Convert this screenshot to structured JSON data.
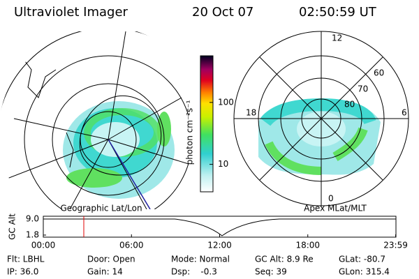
{
  "header": {
    "title": "Ultraviolet Imager",
    "date": "20 Oct 07",
    "time": "02:50:59 UT"
  },
  "left_map": {
    "label": "Geographic Lat/Lon"
  },
  "right_map": {
    "label": "Apex MLat/MLT",
    "mlt_labels": [
      "12",
      "18",
      "6",
      "0"
    ],
    "lat_labels": [
      "60",
      "70",
      "80"
    ]
  },
  "colorbar": {
    "label": "photon cm⁻²s⁻¹",
    "log": true,
    "lim": [
      3.6,
      566
    ],
    "ticks": [
      10,
      100
    ]
  },
  "altitude_plot": {
    "ylabel": "GC Alt",
    "ylim": [
      1.8,
      9.0
    ],
    "yticks": [
      {
        "value": 9.0,
        "label": "9.0"
      },
      {
        "value": 1.8,
        "label": "1.8"
      }
    ],
    "xlim": [
      0,
      24
    ],
    "xticks": [
      {
        "value": 0,
        "label": "00:00"
      },
      {
        "value": 6,
        "label": "06:00"
      },
      {
        "value": 12,
        "label": "12:00"
      },
      {
        "value": 18,
        "label": "18:00"
      },
      {
        "value": 23.98,
        "label": "23:59"
      }
    ]
  },
  "info": [
    [
      "Flt: LBHL",
      "Door: Open",
      "Mode: Normal",
      "GC Alt: 8.9 Re",
      "GLat: -80.7"
    ],
    [
      "IP: 36.0",
      "Gain: 14",
      "Dsp:    -0.3",
      "Seq: 39",
      "GLon: 315.4"
    ]
  ]
}
